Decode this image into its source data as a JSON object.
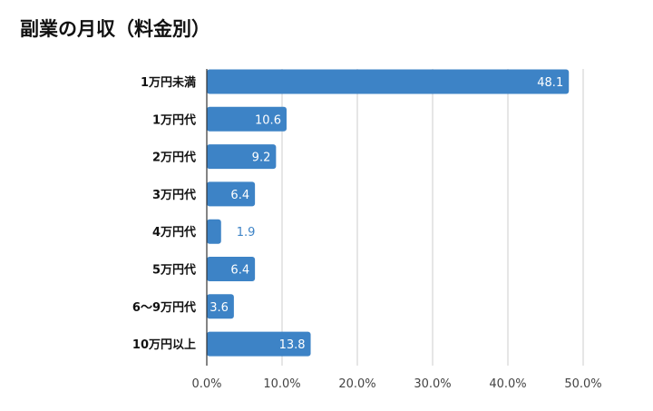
{
  "chart_data": {
    "type": "bar",
    "orientation": "horizontal",
    "title": "副業の月収（料金別）",
    "xlabel": "",
    "ylabel": "",
    "categories": [
      "1万円未満",
      "1万円代",
      "2万円代",
      "3万円代",
      "4万円代",
      "5万円代",
      "6〜9万円代",
      "10万円以上"
    ],
    "values": [
      48.1,
      10.6,
      9.2,
      6.4,
      1.9,
      6.4,
      3.6,
      13.8
    ],
    "value_labels": [
      "48.1",
      "10.6",
      "9.2",
      "6.4",
      "1.9",
      "6.4",
      "3.6",
      "13.8"
    ],
    "xlim": [
      0,
      50
    ],
    "ticks": [
      "0.0%",
      "10.0%",
      "20.0%",
      "30.0%",
      "40.0%",
      "50.0%"
    ],
    "grid": true,
    "legend": "none",
    "bar_color": "#3d83c6",
    "label_inside_color": "#ffffff",
    "label_outside_color": "#3d83c6"
  }
}
